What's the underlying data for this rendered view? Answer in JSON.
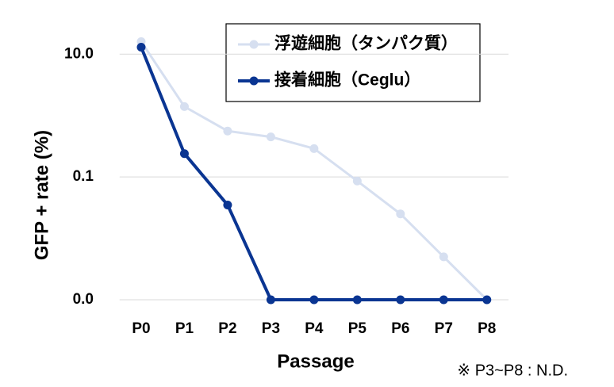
{
  "chart_data": {
    "type": "line",
    "x_label": "Passage",
    "y_label": "GFP + rate (%)",
    "annotation": "※ P3~P8 : N.D.",
    "categories": [
      "P0",
      "P1",
      "P2",
      "P3",
      "P4",
      "P5",
      "P6",
      "P7",
      "P8"
    ],
    "series": [
      {
        "name": "浮遊細胞（タンパク質）",
        "color": "#d6dff0",
        "values": [
          16,
          1.4,
          0.56,
          0.45,
          0.29,
          0.086,
          0.025,
          0.005,
          0.001
        ]
      },
      {
        "name": "接着細胞（Ceglu）",
        "color": "#0a3592",
        "values": [
          13,
          0.24,
          0.035,
          0.001,
          0.001,
          0.001,
          0.001,
          0.001,
          0.001
        ]
      }
    ],
    "ylim": [
      0.001,
      20
    ],
    "log_y": true,
    "yticks": [
      {
        "value": 10,
        "label": "10.0"
      },
      0.1,
      {
        "value": 0.001,
        "label": "0.0"
      }
    ],
    "grid": true,
    "legend": "top-right"
  }
}
